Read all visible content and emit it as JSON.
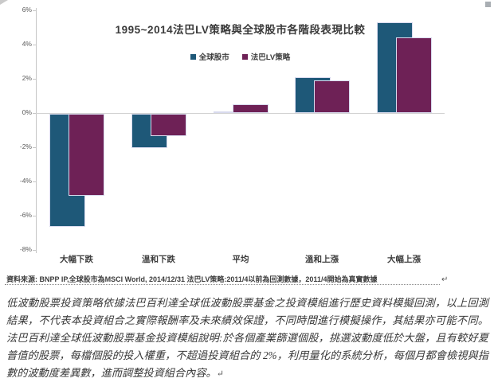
{
  "chart_data": {
    "type": "bar",
    "title": "1995~2014法巴LV策略與全球股市各階段表現比較",
    "categories": [
      "大幅下跌",
      "溫和下跌",
      "平均",
      "溫和上漲",
      "大幅上漲"
    ],
    "series": [
      {
        "name": "全球股市",
        "color": "#1e5878",
        "values": [
          -6.6,
          -2.0,
          0.1,
          2.1,
          5.3
        ]
      },
      {
        "name": "法巴LV策略",
        "color": "#6e2156",
        "values": [
          -4.8,
          -1.3,
          0.5,
          1.9,
          4.4
        ]
      }
    ],
    "y_tick_labels": [
      "6%",
      "4%",
      "2%",
      "0%",
      "-2%",
      "-4%",
      "-6%",
      "-8%"
    ],
    "y_tick_values": [
      6,
      4,
      2,
      0,
      -2,
      -4,
      -6,
      -8
    ],
    "ylim": [
      -8,
      6
    ],
    "unit": "%",
    "grid": "zero-line-only",
    "legend_position": "top-center"
  },
  "source_note": {
    "text": "資料來源: BNPP IP,全球股市為MSCI World, 2014/12/31  法巴LV策略:2011/4以前為回測數據，2011/4開始為真實數據",
    "return_mark": "↵"
  },
  "disclaimer": {
    "text": "低波動股票投資策略依據法巴百利達全球低波動股票基金之投資模組進行歷史資料模擬回測，以上回測結果，不代表本投資組合之實際報酬率及未來績效保證，不同時間進行模擬操作，其結果亦可能不同。法巴百利達全球低波動股票基金投資模組說明:於各個產業篩選個股，挑選波動度低於大盤，且有較好夏普值的股票，每檔個股的投入權重，不超過投資組合的 2%，利用量化的系統分析，每個月都會檢視與指數的波動度差異數，進而調整投資組合內容。",
    "return_mark": "↵"
  }
}
